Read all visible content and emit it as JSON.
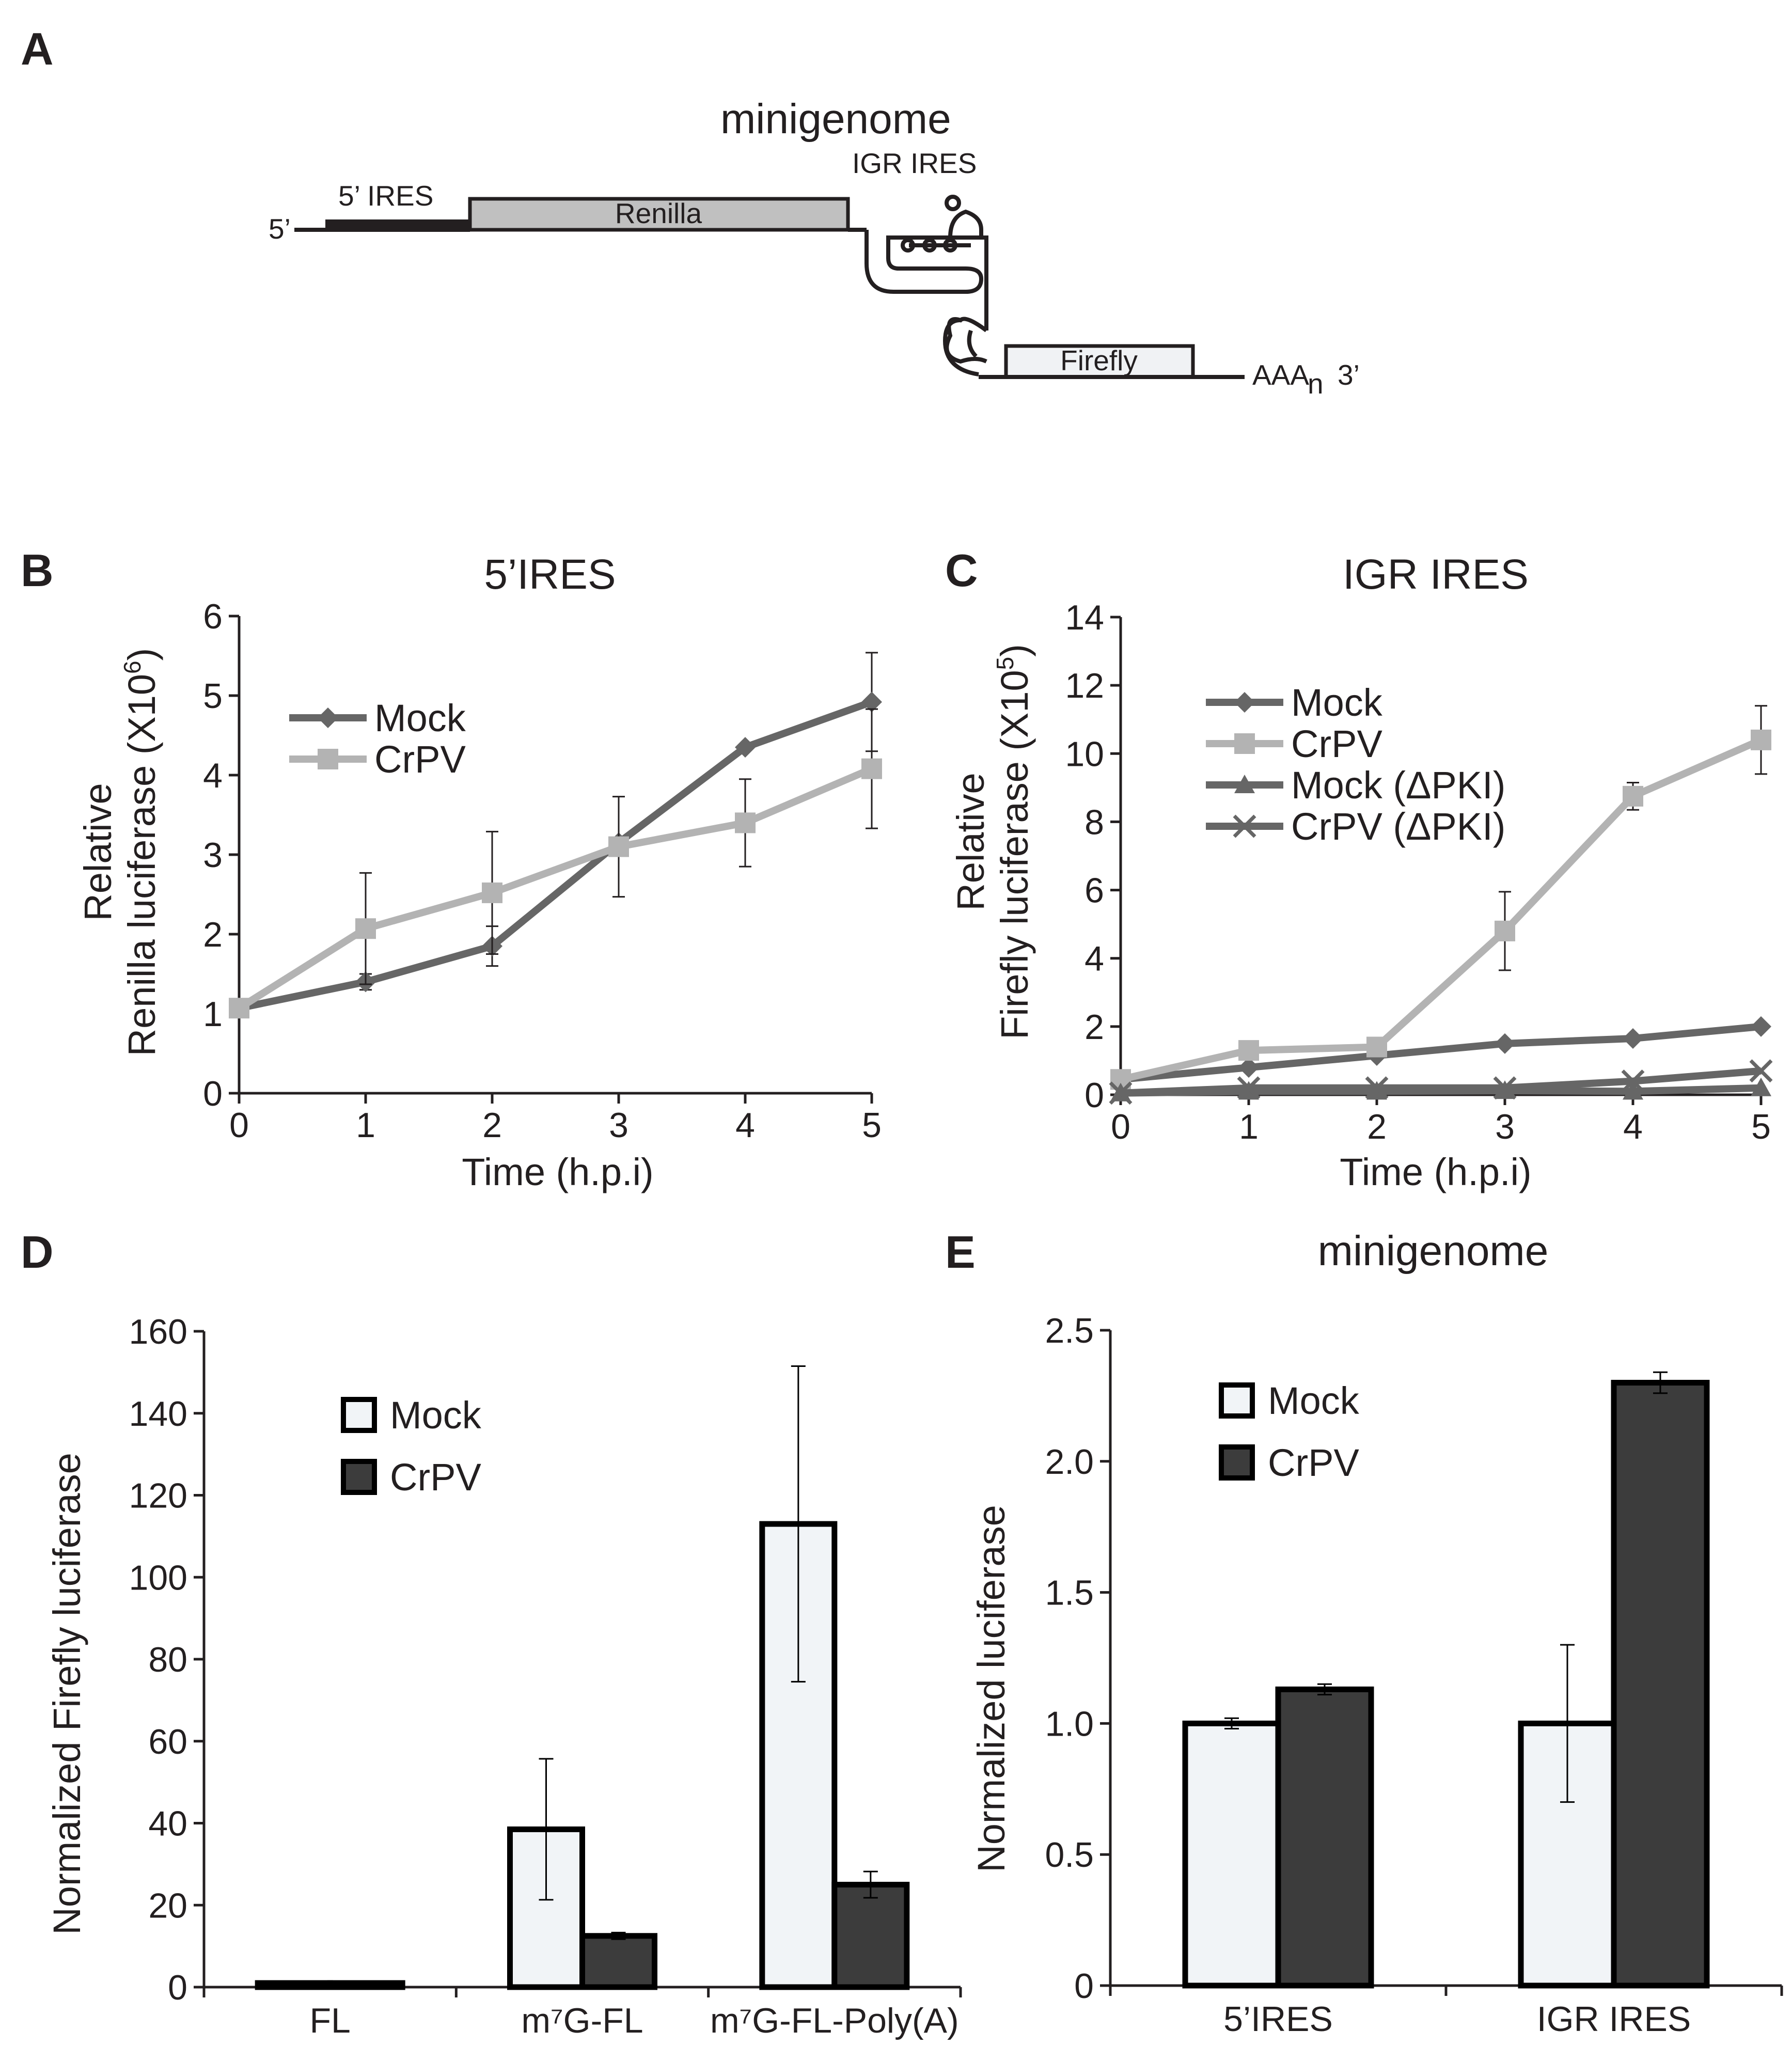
{
  "panels": {
    "a": {
      "letter": "A",
      "title": "minigenome",
      "five_prime": "5’",
      "ires5": "5’ IRES",
      "renilla": "Renilla",
      "igr": "IGR IRES",
      "firefly": "Firefly",
      "aaa": "AAA",
      "aaa_sub": "n",
      "three_prime": "3’"
    },
    "b": {
      "letter": "B"
    },
    "c": {
      "letter": "C"
    },
    "d": {
      "letter": "D"
    },
    "e": {
      "letter": "E"
    }
  },
  "colors": {
    "mock_line": "#666666",
    "crpv_line": "#b3b3b3",
    "mock_bar": "#f1f4f7",
    "crpv_bar": "#3c3c3c",
    "ink": "#231f20"
  },
  "chart_data": [
    {
      "id": "b",
      "type": "line",
      "title": "5’IRES",
      "xlabel": "Time (h.p.i)",
      "ylabel_top": "Relative",
      "ylabel_bottom": "Renilla luciferase (X10",
      "ylabel_sup": "6",
      "ylabel_close": ")",
      "x": [
        0,
        1,
        2,
        3,
        4,
        5
      ],
      "xlim": [
        0,
        5
      ],
      "ylim": [
        0,
        6
      ],
      "xticks": [
        0,
        1,
        2,
        3,
        4,
        5
      ],
      "yticks": [
        0,
        1,
        2,
        3,
        4,
        5,
        6
      ],
      "legend_position": "top-left",
      "series": [
        {
          "name": "Mock",
          "marker": "diamond",
          "values": [
            1.07,
            1.4,
            1.85,
            3.15,
            4.35,
            4.92
          ],
          "errors": [
            0,
            0.1,
            0.25,
            0,
            0,
            0.62
          ]
        },
        {
          "name": "CrPV",
          "marker": "square",
          "values": [
            1.07,
            2.07,
            2.52,
            3.1,
            3.4,
            4.08
          ],
          "errors": [
            0,
            0.7,
            0.77,
            0.63,
            0.55,
            0.75
          ]
        }
      ]
    },
    {
      "id": "c",
      "type": "line",
      "title": "IGR IRES",
      "xlabel": "Time (h.p.i)",
      "ylabel_top": "Relative",
      "ylabel_bottom": "Firefly luciferase (X10",
      "ylabel_sup": "5",
      "ylabel_close": ")",
      "x": [
        0,
        1,
        2,
        3,
        4,
        5
      ],
      "xlim": [
        0,
        5
      ],
      "ylim": [
        0,
        14
      ],
      "xticks": [
        0,
        1,
        2,
        3,
        4,
        5
      ],
      "yticks": [
        0,
        2,
        4,
        6,
        8,
        10,
        12,
        14
      ],
      "legend_position": "top-left",
      "series": [
        {
          "name": "Mock",
          "marker": "diamond",
          "values": [
            0.45,
            0.8,
            1.15,
            1.5,
            1.65,
            2.0
          ],
          "errors": [
            0,
            0,
            0,
            0,
            0,
            0
          ]
        },
        {
          "name": "CrPV",
          "marker": "square",
          "values": [
            0.45,
            1.3,
            1.4,
            4.8,
            8.75,
            10.4
          ],
          "errors": [
            0,
            0,
            0,
            1.15,
            0.4,
            1.0
          ]
        },
        {
          "name": "Mock (ΔPKI)",
          "marker": "triangle",
          "values": [
            0.05,
            0.1,
            0.1,
            0.12,
            0.1,
            0.2
          ],
          "errors": [
            0,
            0,
            0,
            0,
            0,
            0
          ]
        },
        {
          "name": "CrPV (ΔPKI)",
          "marker": "cross",
          "values": [
            0.05,
            0.2,
            0.2,
            0.2,
            0.4,
            0.7
          ],
          "errors": [
            0,
            0,
            0,
            0,
            0,
            0
          ]
        }
      ]
    },
    {
      "id": "d",
      "type": "bar",
      "title": "",
      "ylabel": "Normalized Firefly luciferase",
      "categories": [
        "FL",
        "m⁷G-FL",
        "m⁷G-FL-Poly(A)"
      ],
      "ylim": [
        0,
        160
      ],
      "yticks": [
        "0",
        "20",
        "40",
        "60",
        "80",
        "100",
        "120",
        "140",
        "160"
      ],
      "legend_position": "top-left",
      "series": [
        {
          "name": "Mock",
          "values": [
            1,
            38.5,
            113
          ],
          "errors": [
            0,
            17.2,
            38.5
          ]
        },
        {
          "name": "CrPV",
          "values": [
            1,
            12.5,
            25
          ],
          "errors": [
            0,
            0.8,
            3.2
          ]
        }
      ]
    },
    {
      "id": "e",
      "type": "bar",
      "title": "minigenome",
      "ylabel": "Normalized luciferase",
      "categories": [
        "5’IRES",
        "IGR IRES"
      ],
      "ylim": [
        0,
        2.5
      ],
      "yticks": [
        "0",
        "0.5",
        "1.0",
        "1.5",
        "2.0",
        "2.5"
      ],
      "legend_position": "top-left",
      "series": [
        {
          "name": "Mock",
          "values": [
            1.0,
            1.0
          ],
          "errors": [
            0.02,
            0.3
          ]
        },
        {
          "name": "CrPV",
          "values": [
            1.13,
            2.3
          ],
          "errors": [
            0.02,
            0.04
          ]
        }
      ]
    }
  ]
}
